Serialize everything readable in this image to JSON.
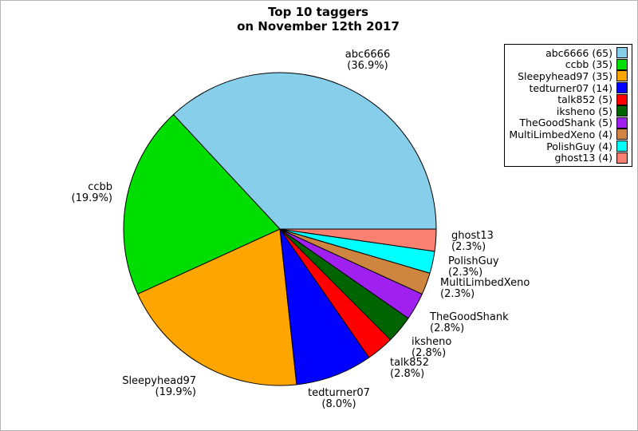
{
  "figure": {
    "title_line1": "Top 10 taggers",
    "title_line2": "on November 12th 2017"
  },
  "chart_data": {
    "type": "pie",
    "title": "Top 10 taggers on November 12th 2017",
    "total": 176,
    "start_angle_deg": 0,
    "direction": "counterclockwise",
    "legend_position": "upper-right",
    "slices": [
      {
        "label": "abc6666",
        "value": 65,
        "pct_label": "(36.9%)",
        "legend_label": "abc6666 (65)",
        "color": "#87CEEB"
      },
      {
        "label": "ccbb",
        "value": 35,
        "pct_label": "(19.9%)",
        "legend_label": "ccbb (35)",
        "color": "#00DD00"
      },
      {
        "label": "Sleepyhead97",
        "value": 35,
        "pct_label": "(19.9%)",
        "legend_label": "Sleepyhead97 (35)",
        "color": "#FFA500"
      },
      {
        "label": "tedturner07",
        "value": 14,
        "pct_label": "(8.0%)",
        "legend_label": "tedturner07 (14)",
        "color": "#0000FF"
      },
      {
        "label": "talk852",
        "value": 5,
        "pct_label": "(2.8%)",
        "legend_label": "talk852 (5)",
        "color": "#FF0000"
      },
      {
        "label": "iksheno",
        "value": 5,
        "pct_label": "(2.8%)",
        "legend_label": "iksheno (5)",
        "color": "#006400"
      },
      {
        "label": "TheGoodShank",
        "value": 5,
        "pct_label": "(2.8%)",
        "legend_label": "TheGoodShank (5)",
        "color": "#A020F0"
      },
      {
        "label": "MultiLimbedXeno",
        "value": 4,
        "pct_label": "(2.3%)",
        "legend_label": "MultiLimbedXeno (4)",
        "color": "#CD853F"
      },
      {
        "label": "PolishGuy",
        "value": 4,
        "pct_label": "(2.3%)",
        "legend_label": "PolishGuy (4)",
        "color": "#00FFFF"
      },
      {
        "label": "ghost13",
        "value": 4,
        "pct_label": "(2.3%)",
        "legend_label": "ghost13 (4)",
        "color": "#FA8072"
      }
    ]
  }
}
